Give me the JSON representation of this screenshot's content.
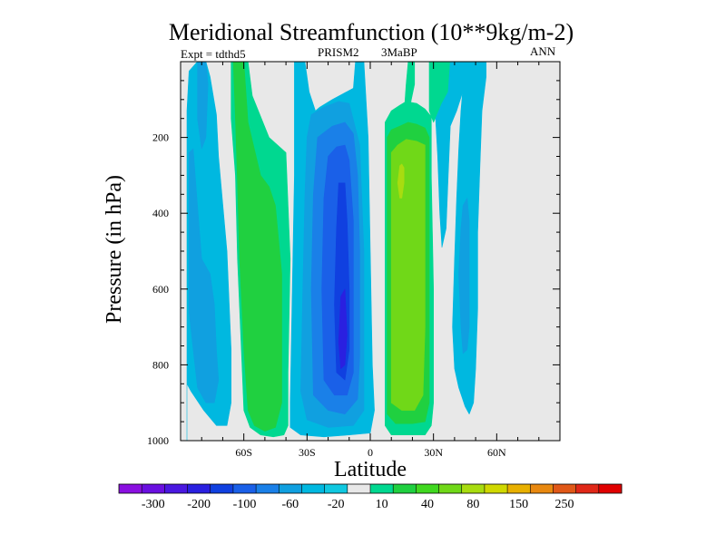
{
  "chart_data": {
    "type": "contour",
    "title": "Meridional Streamfunction (10**9kg/m-2)",
    "subtitle_left": "Expt = tdthd5",
    "subtitle_center_1": "PRISM2",
    "subtitle_center_2": "3MaBP",
    "subtitle_right": "ANN",
    "xlabel": "Latitude",
    "ylabel": "Pressure (in hPa)",
    "xlim": [
      -90,
      90
    ],
    "ylim": [
      1000,
      0
    ],
    "xticks": [
      {
        "value": -60,
        "label": "60S"
      },
      {
        "value": -30,
        "label": "30S"
      },
      {
        "value": 0,
        "label": "0"
      },
      {
        "value": 30,
        "label": "30N"
      },
      {
        "value": 60,
        "label": "60N"
      }
    ],
    "yticks": [
      {
        "value": 200,
        "label": "200"
      },
      {
        "value": 400,
        "label": "400"
      },
      {
        "value": 600,
        "label": "600"
      },
      {
        "value": 800,
        "label": "800"
      },
      {
        "value": 1000,
        "label": "1000"
      }
    ],
    "background_color": "#e8e8e8",
    "levels": [
      -300,
      -250,
      -200,
      -150,
      -100,
      -80,
      -60,
      -40,
      -20,
      -10,
      10,
      20,
      40,
      60,
      80,
      100,
      150,
      200,
      250,
      300
    ],
    "colorbar_colors": [
      "#8a10e0",
      "#6a10e0",
      "#4a18e0",
      "#2a20e0",
      "#1040e0",
      "#1a60e8",
      "#1a80e8",
      "#10a0e0",
      "#00b8e0",
      "#10c8e0",
      "#e8e8e8",
      "#00d890",
      "#20d040",
      "#40d820",
      "#70d818",
      "#a8dc10",
      "#d0d800",
      "#e8b000",
      "#e88810",
      "#e05818",
      "#e02818",
      "#e00000"
    ],
    "colorbar_labels": [
      {
        "after_box": 1,
        "label": "-300"
      },
      {
        "after_box": 3,
        "label": "-200"
      },
      {
        "after_box": 5,
        "label": "-100"
      },
      {
        "after_box": 7,
        "label": "-60"
      },
      {
        "after_box": 9,
        "label": "-20"
      },
      {
        "after_box": 11,
        "label": "10"
      },
      {
        "after_box": 13,
        "label": "40"
      },
      {
        "after_box": 15,
        "label": "80"
      },
      {
        "after_box": 17,
        "label": "150"
      },
      {
        "after_box": 19,
        "label": "250"
      }
    ],
    "regions": [
      {
        "name": "sh-polar-cell",
        "color": "#00b8e0",
        "points": [
          [
            -87,
            1000
          ],
          [
            -87,
            130
          ],
          [
            -86,
            25
          ],
          [
            -82,
            0
          ],
          [
            -78,
            0
          ],
          [
            -76,
            40
          ],
          [
            -73,
            140
          ],
          [
            -72,
            250
          ],
          [
            -68,
            500
          ],
          [
            -66,
            760
          ],
          [
            -66,
            900
          ],
          [
            -68,
            960
          ],
          [
            -73,
            960
          ],
          [
            -79,
            920
          ],
          [
            -85,
            870
          ],
          [
            -87,
            850
          ]
        ]
      },
      {
        "name": "sh-polar-core-1",
        "color": "#10a0e0",
        "points": [
          [
            -86,
            440
          ],
          [
            -86,
            240
          ],
          [
            -84,
            230
          ],
          [
            -82,
            380
          ],
          [
            -80,
            520
          ],
          [
            -76,
            560
          ],
          [
            -74,
            640
          ],
          [
            -73,
            760
          ],
          [
            -72,
            840
          ],
          [
            -74,
            900
          ],
          [
            -78,
            900
          ],
          [
            -82,
            860
          ],
          [
            -84,
            760
          ],
          [
            -86,
            660
          ]
        ]
      },
      {
        "name": "sh-polar-core-2",
        "color": "#10a0e0",
        "points": [
          [
            -82,
            0
          ],
          [
            -78,
            0
          ],
          [
            -77,
            60
          ],
          [
            -78,
            200
          ],
          [
            -80,
            230
          ],
          [
            -82,
            150
          ]
        ]
      },
      {
        "name": "sh-ferrel-cell",
        "color": "#00d890",
        "points": [
          [
            -66,
            0
          ],
          [
            -58,
            0
          ],
          [
            -56,
            90
          ],
          [
            -48,
            200
          ],
          [
            -40,
            240
          ],
          [
            -38,
            520
          ],
          [
            -39,
            820
          ],
          [
            -39,
            960
          ],
          [
            -41,
            985
          ],
          [
            -46,
            990
          ],
          [
            -52,
            985
          ],
          [
            -57,
            965
          ],
          [
            -60,
            920
          ],
          [
            -61,
            780
          ],
          [
            -63,
            520
          ],
          [
            -64,
            300
          ],
          [
            -66,
            150
          ]
        ]
      },
      {
        "name": "sh-ferrel-core",
        "color": "#20d040",
        "points": [
          [
            -65,
            0
          ],
          [
            -60,
            0
          ],
          [
            -58,
            160
          ],
          [
            -52,
            300
          ],
          [
            -48,
            330
          ],
          [
            -45,
            380
          ],
          [
            -42,
            560
          ],
          [
            -42,
            820
          ],
          [
            -42,
            900
          ],
          [
            -45,
            965
          ],
          [
            -50,
            975
          ],
          [
            -55,
            960
          ],
          [
            -58,
            920
          ],
          [
            -60,
            760
          ],
          [
            -62,
            520
          ],
          [
            -63,
            320
          ],
          [
            -64,
            150
          ]
        ]
      },
      {
        "name": "sh-hadley-outer",
        "color": "#00b8e0",
        "points": [
          [
            -36,
            0
          ],
          [
            -31,
            0
          ],
          [
            -29,
            80
          ],
          [
            -26,
            130
          ],
          [
            -24,
            120
          ],
          [
            -18,
            100
          ],
          [
            -13,
            85
          ],
          [
            -8,
            70
          ],
          [
            -7,
            0
          ],
          [
            -3,
            0
          ],
          [
            -1,
            200
          ],
          [
            0,
            500
          ],
          [
            1,
            800
          ],
          [
            2,
            920
          ],
          [
            0,
            980
          ],
          [
            -10,
            985
          ],
          [
            -22,
            990
          ],
          [
            -33,
            985
          ],
          [
            -38,
            965
          ],
          [
            -38,
            900
          ],
          [
            -37,
            600
          ],
          [
            -36,
            300
          ],
          [
            -36,
            120
          ]
        ]
      },
      {
        "name": "sh-hadley-20",
        "color": "#10a0e0",
        "points": [
          [
            -28,
            140
          ],
          [
            -22,
            120
          ],
          [
            -15,
            105
          ],
          [
            -10,
            110
          ],
          [
            -5,
            220
          ],
          [
            -3,
            500
          ],
          [
            -3,
            780
          ],
          [
            -3,
            920
          ],
          [
            -8,
            960
          ],
          [
            -20,
            965
          ],
          [
            -30,
            945
          ],
          [
            -33,
            870
          ],
          [
            -32,
            600
          ],
          [
            -31,
            350
          ],
          [
            -30,
            200
          ]
        ]
      },
      {
        "name": "sh-hadley-40",
        "color": "#1a80e8",
        "points": [
          [
            -25,
            200
          ],
          [
            -18,
            170
          ],
          [
            -12,
            160
          ],
          [
            -8,
            190
          ],
          [
            -6,
            300
          ],
          [
            -5,
            500
          ],
          [
            -5,
            780
          ],
          [
            -6,
            890
          ],
          [
            -12,
            930
          ],
          [
            -20,
            920
          ],
          [
            -27,
            880
          ],
          [
            -28,
            600
          ],
          [
            -27,
            350
          ]
        ]
      },
      {
        "name": "sh-hadley-60",
        "color": "#1a60e8",
        "points": [
          [
            -20,
            250
          ],
          [
            -16,
            225
          ],
          [
            -12,
            220
          ],
          [
            -10,
            260
          ],
          [
            -8,
            420
          ],
          [
            -8,
            640
          ],
          [
            -8,
            820
          ],
          [
            -11,
            880
          ],
          [
            -17,
            880
          ],
          [
            -22,
            840
          ],
          [
            -23,
            600
          ],
          [
            -22,
            360
          ]
        ]
      },
      {
        "name": "sh-hadley-80",
        "color": "#1040e0",
        "points": [
          [
            -15,
            320
          ],
          [
            -12,
            320
          ],
          [
            -11,
            420
          ],
          [
            -10,
            600
          ],
          [
            -10,
            760
          ],
          [
            -12,
            840
          ],
          [
            -16,
            820
          ],
          [
            -17,
            640
          ],
          [
            -16,
            440
          ]
        ]
      },
      {
        "name": "sh-hadley-100",
        "color": "#2a20e0",
        "points": [
          [
            -14,
            620
          ],
          [
            -12,
            600
          ],
          [
            -11,
            720
          ],
          [
            -12,
            800
          ],
          [
            -14,
            810
          ],
          [
            -15,
            740
          ]
        ]
      },
      {
        "name": "nh-hadley-outer",
        "color": "#00d890",
        "points": [
          [
            7,
            960
          ],
          [
            7,
            160
          ],
          [
            10,
            130
          ],
          [
            14,
            115
          ],
          [
            17,
            105
          ],
          [
            22,
            110
          ],
          [
            26,
            125
          ],
          [
            29,
            145
          ],
          [
            29,
            300
          ],
          [
            30,
            600
          ],
          [
            30,
            900
          ],
          [
            29,
            960
          ],
          [
            26,
            985
          ],
          [
            17,
            985
          ],
          [
            10,
            985
          ]
        ]
      },
      {
        "name": "nh-hadley-20",
        "color": "#20d040",
        "points": [
          [
            8,
            930
          ],
          [
            8,
            200
          ],
          [
            10,
            180
          ],
          [
            14,
            170
          ],
          [
            18,
            160
          ],
          [
            22,
            165
          ],
          [
            26,
            175
          ],
          [
            28,
            200
          ],
          [
            28,
            400
          ],
          [
            28,
            700
          ],
          [
            28,
            900
          ],
          [
            26,
            950
          ],
          [
            20,
            955
          ],
          [
            12,
            955
          ]
        ]
      },
      {
        "name": "nh-hadley-40",
        "color": "#70d818",
        "points": [
          [
            10,
            900
          ],
          [
            10,
            240
          ],
          [
            13,
            220
          ],
          [
            17,
            205
          ],
          [
            22,
            210
          ],
          [
            26,
            220
          ],
          [
            26,
            420
          ],
          [
            26,
            700
          ],
          [
            25,
            880
          ],
          [
            21,
            920
          ],
          [
            15,
            920
          ]
        ]
      },
      {
        "name": "nh-hadley-80",
        "color": "#a8dc10",
        "points": [
          [
            13,
            320
          ],
          [
            14,
            275
          ],
          [
            15,
            270
          ],
          [
            16,
            280
          ],
          [
            16,
            320
          ],
          [
            15,
            360
          ],
          [
            14,
            360
          ]
        ]
      },
      {
        "name": "nh-ferrel-cap",
        "color": "#00d890",
        "points": [
          [
            18,
            0
          ],
          [
            21,
            0
          ],
          [
            21,
            60
          ],
          [
            18,
            140
          ],
          [
            16,
            140
          ],
          [
            17,
            60
          ]
        ]
      },
      {
        "name": "nh-ferrel-top",
        "color": "#00d890",
        "points": [
          [
            28,
            0
          ],
          [
            38,
            0
          ],
          [
            37,
            80
          ],
          [
            34,
            110
          ],
          [
            30,
            160
          ],
          [
            28,
            130
          ]
        ]
      },
      {
        "name": "nh-cyan-1",
        "color": "#00b8e0",
        "points": [
          [
            38,
            0
          ],
          [
            45,
            0
          ],
          [
            45,
            60
          ],
          [
            41,
            130
          ],
          [
            38,
            170
          ],
          [
            37,
            300
          ],
          [
            36,
            440
          ],
          [
            34,
            490
          ],
          [
            33,
            400
          ],
          [
            32,
            250
          ],
          [
            31,
            150
          ],
          [
            34,
            110
          ],
          [
            37,
            80
          ]
        ]
      },
      {
        "name": "nh-cyan-2",
        "color": "#00b8e0",
        "points": [
          [
            45,
            0
          ],
          [
            55,
            0
          ],
          [
            55,
            40
          ],
          [
            53,
            130
          ],
          [
            52,
            280
          ],
          [
            51,
            450
          ],
          [
            51,
            650
          ],
          [
            50,
            810
          ],
          [
            49,
            900
          ],
          [
            47,
            930
          ],
          [
            45,
            910
          ],
          [
            42,
            860
          ],
          [
            40,
            810
          ],
          [
            39,
            700
          ],
          [
            40,
            520
          ],
          [
            41,
            360
          ],
          [
            42,
            230
          ],
          [
            43,
            130
          ]
        ]
      },
      {
        "name": "nh-cyan-core",
        "color": "#10a0e0",
        "points": [
          [
            44,
            380
          ],
          [
            46,
            360
          ],
          [
            47,
            420
          ],
          [
            47,
            560
          ],
          [
            47,
            700
          ],
          [
            46,
            760
          ],
          [
            44,
            770
          ],
          [
            43,
            700
          ],
          [
            42,
            560
          ],
          [
            43,
            440
          ]
        ]
      }
    ]
  }
}
